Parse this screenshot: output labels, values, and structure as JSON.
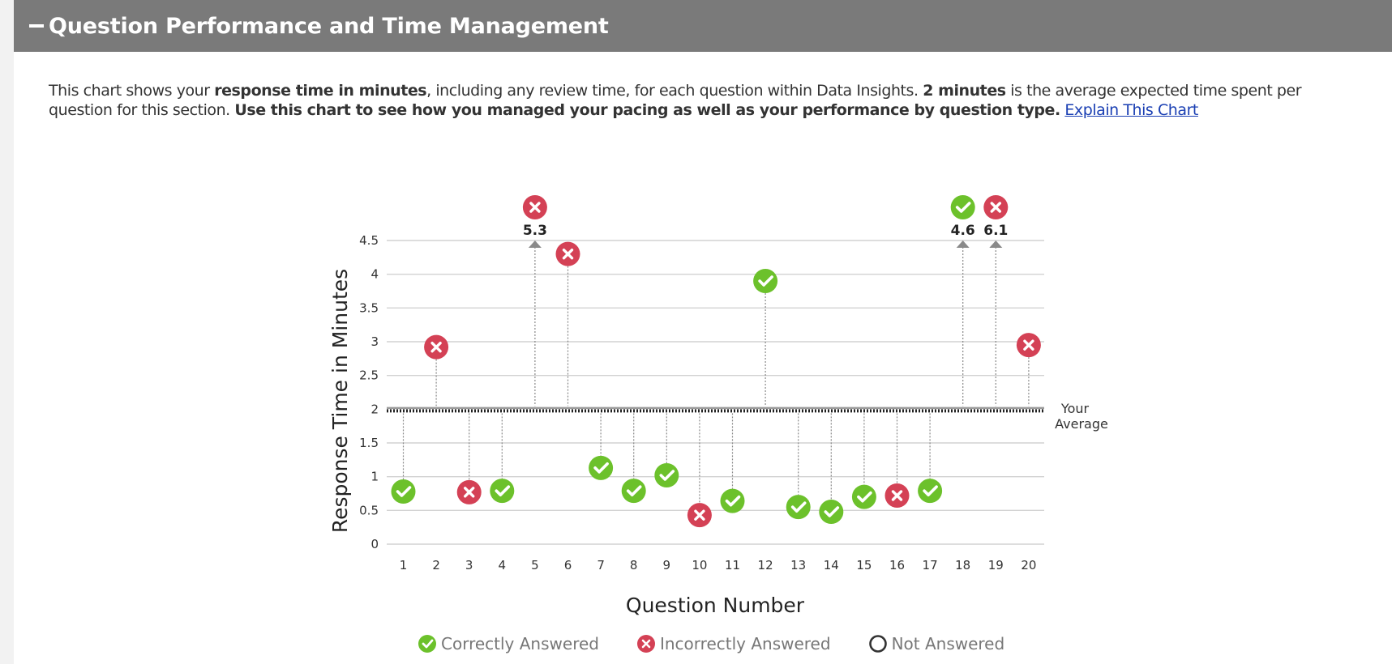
{
  "header": {
    "title": "Question Performance and Time Management"
  },
  "description": {
    "t1": "This chart shows your ",
    "b1": "response time in minutes",
    "t2": ", including any review time, for each question within Data Insights. ",
    "b2": "2 minutes",
    "t3": " is the average expected time spent per question for this section. ",
    "b3": "Use this chart to see how you managed your pacing as well as your performance by question type.",
    "t4": " ",
    "link": "Explain This Chart"
  },
  "colors": {
    "correct": "#6cc12b",
    "incorrect": "#d44155",
    "header_bg": "#7a7a7a"
  },
  "chart_data": {
    "type": "scatter",
    "xlabel": "Question Number",
    "ylabel": "Response Time in Minutes",
    "ylim": [
      0,
      4.5
    ],
    "yticks": [
      "0",
      "0.5",
      "1",
      "1.5",
      "2",
      "2.5",
      "3",
      "3.5",
      "4",
      "4.5"
    ],
    "average_value": 2,
    "average_label": [
      "Your",
      "Average"
    ],
    "grid": true,
    "points": [
      {
        "q": 1,
        "time": 0.78,
        "status": "correct"
      },
      {
        "q": 2,
        "time": 2.92,
        "status": "incorrect"
      },
      {
        "q": 3,
        "time": 0.77,
        "status": "incorrect"
      },
      {
        "q": 4,
        "time": 0.79,
        "status": "correct"
      },
      {
        "q": 5,
        "time": 5.3,
        "status": "incorrect",
        "overflow_label": "5.3"
      },
      {
        "q": 6,
        "time": 4.3,
        "status": "incorrect"
      },
      {
        "q": 7,
        "time": 1.13,
        "status": "correct"
      },
      {
        "q": 8,
        "time": 0.79,
        "status": "correct"
      },
      {
        "q": 9,
        "time": 1.02,
        "status": "correct"
      },
      {
        "q": 10,
        "time": 0.43,
        "status": "incorrect"
      },
      {
        "q": 11,
        "time": 0.64,
        "status": "correct"
      },
      {
        "q": 12,
        "time": 3.9,
        "status": "correct"
      },
      {
        "q": 13,
        "time": 0.55,
        "status": "correct"
      },
      {
        "q": 14,
        "time": 0.48,
        "status": "correct"
      },
      {
        "q": 15,
        "time": 0.7,
        "status": "correct"
      },
      {
        "q": 16,
        "time": 0.72,
        "status": "incorrect"
      },
      {
        "q": 17,
        "time": 0.79,
        "status": "correct"
      },
      {
        "q": 18,
        "time": 4.6,
        "status": "correct",
        "overflow_label": "4.6"
      },
      {
        "q": 19,
        "time": 6.1,
        "status": "incorrect",
        "overflow_label": "6.1"
      },
      {
        "q": 20,
        "time": 2.95,
        "status": "incorrect"
      }
    ],
    "legend": [
      {
        "status": "correct",
        "label": "Correctly Answered"
      },
      {
        "status": "incorrect",
        "label": "Incorrectly Answered"
      },
      {
        "status": "not-answered",
        "label": "Not Answered"
      }
    ]
  }
}
